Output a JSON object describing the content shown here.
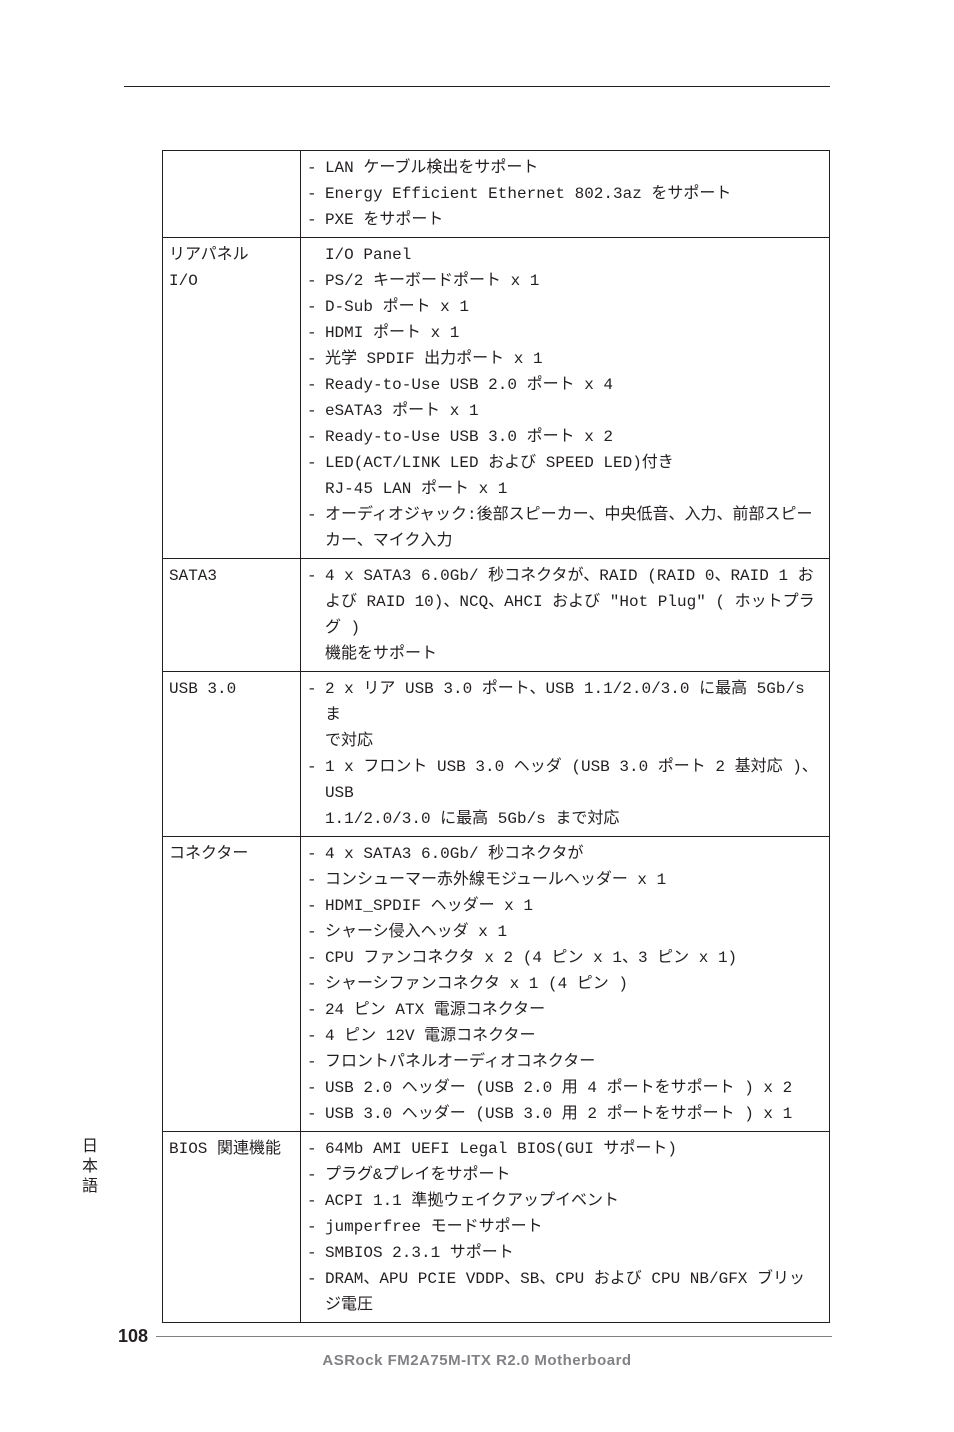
{
  "side_tab": "日本語",
  "page_number": "108",
  "footer": "ASRock  FM2A75M-ITX R2.0  Motherboard",
  "rows": [
    {
      "label": "",
      "items": [
        {
          "dash": "-",
          "text": "LAN ケーブル検出をサポート"
        },
        {
          "dash": "-",
          "text": "Energy Efficient Ethernet 802.3az をサポート"
        },
        {
          "dash": "-",
          "text": "PXE をサポート"
        }
      ]
    },
    {
      "label_lines": [
        "リアパネル",
        "I/O"
      ],
      "items": [
        {
          "dash": "",
          "text": "I/O Panel"
        },
        {
          "dash": "-",
          "text": "PS/2 キーボードポート x 1"
        },
        {
          "dash": "-",
          "text": "D-Sub ポート x 1"
        },
        {
          "dash": "-",
          "text": "HDMI ポート x 1"
        },
        {
          "dash": "-",
          "text": "光学 SPDIF 出力ポート x 1"
        },
        {
          "dash": "-",
          "text": "Ready-to-Use USB 2.0 ポート x 4"
        },
        {
          "dash": "-",
          "text": "eSATA3 ポート x 1"
        },
        {
          "dash": "-",
          "text": "Ready-to-Use USB 3.0 ポート x 2"
        },
        {
          "dash": "-",
          "text": "LED(ACT/LINK LED および SPEED LED)付き"
        },
        {
          "dash": "",
          "text": "RJ-45 LAN ポート x 1",
          "indent": true
        },
        {
          "dash": "-",
          "text": "オーディオジャック:後部スピーカー、中央低音、入力、前部スピー"
        },
        {
          "dash": "",
          "text": "カー、マイク入力",
          "indent": true
        }
      ]
    },
    {
      "label": "SATA3",
      "items": [
        {
          "dash": "-",
          "text": "4 x SATA3 6.0Gb/ 秒コネクタが、RAID (RAID 0、RAID 1 お"
        },
        {
          "dash": "",
          "text": "よび RAID 10)、NCQ、AHCI および \"Hot Plug\" ( ホットプラグ )",
          "indent": true
        },
        {
          "dash": "",
          "text": "機能をサポート",
          "indent": true
        }
      ]
    },
    {
      "label": "USB 3.0",
      "items": [
        {
          "dash": "-",
          "text": "2 x リア USB 3.0 ポート、USB 1.1/2.0/3.0 に最高 5Gb/s ま"
        },
        {
          "dash": "",
          "text": "で対応",
          "indent": true
        },
        {
          "dash": "-",
          "text": "1 x フロント USB 3.0 ヘッダ (USB 3.0 ポート 2 基対応 )、USB"
        },
        {
          "dash": "",
          "text": "1.1/2.0/3.0 に最高 5Gb/s まで対応",
          "indent": true
        }
      ]
    },
    {
      "label": "コネクター",
      "items": [
        {
          "dash": "-",
          "text": "4 x SATA3 6.0Gb/ 秒コネクタが"
        },
        {
          "dash": "-",
          "text": "コンシューマー赤外線モジュールヘッダー x 1"
        },
        {
          "dash": "-",
          "text": "HDMI_SPDIF ヘッダー x 1"
        },
        {
          "dash": "-",
          "text": "シャーシ侵入ヘッダ x 1"
        },
        {
          "dash": "-",
          "text": "CPU ファンコネクタ x 2 (4 ピン x 1、3 ピン x 1)"
        },
        {
          "dash": "-",
          "text": "シャーシファンコネクタ x 1 (4 ピン )"
        },
        {
          "dash": "-",
          "text": "24 ピン ATX 電源コネクター"
        },
        {
          "dash": "-",
          "text": "4 ピン 12V 電源コネクター"
        },
        {
          "dash": "-",
          "text": "フロントパネルオーディオコネクター"
        },
        {
          "dash": "-",
          "text": "USB 2.0 ヘッダー (USB 2.0 用 4 ポートをサポート ) x 2"
        },
        {
          "dash": "-",
          "text": "USB 3.0 ヘッダー (USB 3.0 用 2 ポートをサポート ) x 1"
        }
      ]
    },
    {
      "label": "BIOS 関連機能",
      "items": [
        {
          "dash": "-",
          "text": "64Mb AMI UEFI Legal BIOS(GUI サポート)"
        },
        {
          "dash": "-",
          "text": "プラグ&プレイをサポート"
        },
        {
          "dash": "-",
          "text": "ACPI 1.1 準拠ウェイクアップイベント"
        },
        {
          "dash": "-",
          "text": "jumperfree モードサポート"
        },
        {
          "dash": "-",
          "text": "SMBIOS 2.3.1 サポート"
        },
        {
          "dash": "-",
          "text": "DRAM、APU PCIE VDDP、SB、CPU および CPU NB/GFX ブリッ"
        },
        {
          "dash": "",
          "text": "ジ電圧",
          "indent": true
        }
      ]
    }
  ]
}
